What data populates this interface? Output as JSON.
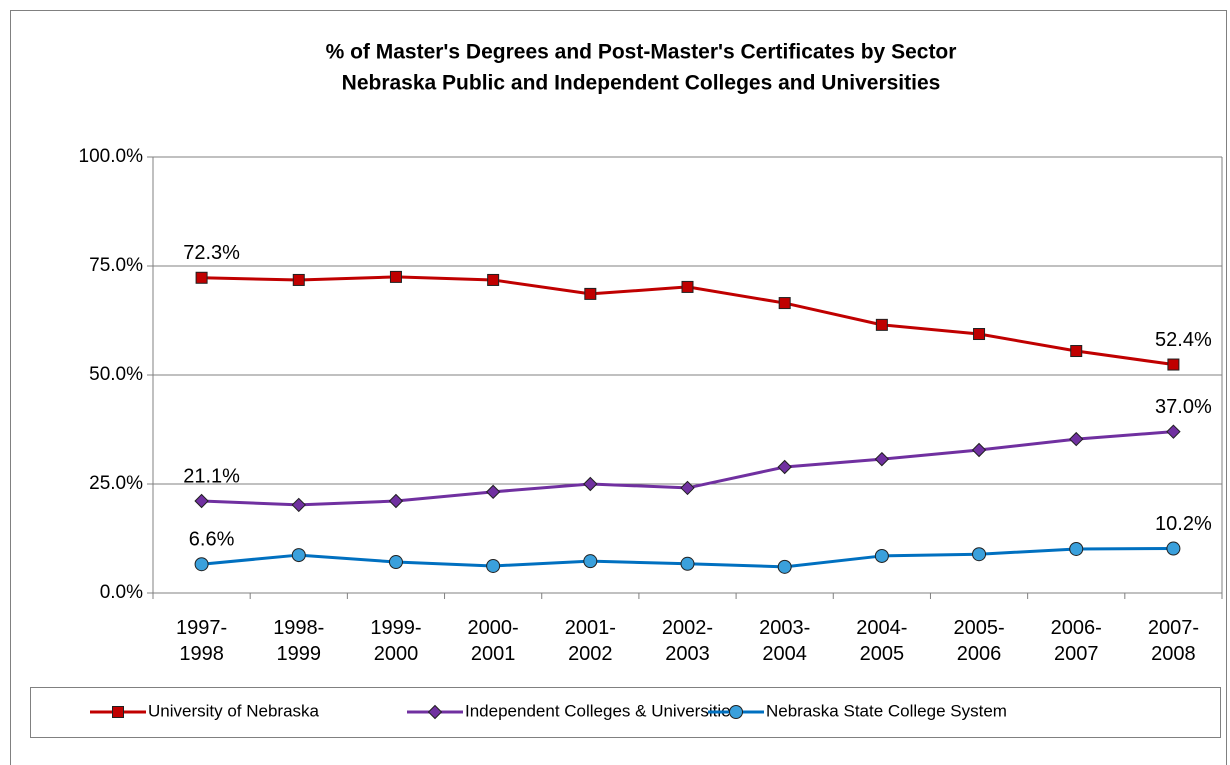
{
  "chart_data": {
    "type": "line",
    "title": "% of Master's Degrees and Post-Master's Certificates by Sector",
    "subtitle": "Nebraska Public and Independent Colleges and Universities",
    "categories": [
      "1997-1998",
      "1998-1999",
      "1999-2000",
      "2000-2001",
      "2001-2002",
      "2002-2003",
      "2003-2004",
      "2004-2005",
      "2005-2006",
      "2006-2007",
      "2007-2008"
    ],
    "series": [
      {
        "name": "University of Nebraska",
        "color": "#c00000",
        "marker": "square",
        "values": [
          72.3,
          71.8,
          72.5,
          71.8,
          68.6,
          70.2,
          66.5,
          61.5,
          59.4,
          55.5,
          52.4
        ],
        "value_labels": [
          "72.3%",
          null,
          null,
          null,
          null,
          null,
          null,
          null,
          null,
          null,
          "52.4%"
        ]
      },
      {
        "name": "Independent Colleges & Universities",
        "color": "#7030a0",
        "marker": "diamond",
        "values": [
          21.1,
          20.2,
          21.1,
          23.2,
          25.0,
          24.1,
          28.9,
          30.7,
          32.8,
          35.3,
          37.0
        ],
        "value_labels": [
          "21.1%",
          null,
          null,
          null,
          null,
          null,
          null,
          null,
          null,
          null,
          "37.0%"
        ]
      },
      {
        "name": "Nebraska State College System",
        "color": "#0070c0",
        "marker": "circle",
        "values": [
          6.6,
          8.7,
          7.1,
          6.2,
          7.3,
          6.7,
          6.0,
          8.5,
          8.9,
          10.1,
          10.2
        ],
        "value_labels": [
          "6.6%",
          null,
          null,
          null,
          null,
          null,
          null,
          null,
          null,
          null,
          "10.2%"
        ]
      }
    ],
    "ylim": [
      0,
      100
    ],
    "yticks": [
      {
        "value": 0,
        "label": "0.0%"
      },
      {
        "value": 25,
        "label": "25.0%"
      },
      {
        "value": 50,
        "label": "50.0%"
      },
      {
        "value": 75,
        "label": "75.0%"
      },
      {
        "value": 100,
        "label": "100.0%"
      }
    ],
    "grid": true,
    "legend": "bottom"
  }
}
